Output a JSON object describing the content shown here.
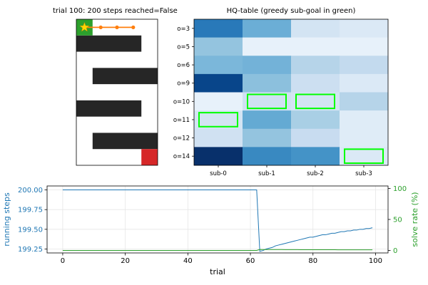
{
  "maze": {
    "title": "trial 100: 200 steps  reached=False",
    "rows": 9,
    "cols": 5,
    "walls": [
      [
        1,
        0,
        4
      ],
      [
        3,
        1,
        5
      ],
      [
        5,
        0,
        4
      ],
      [
        7,
        1,
        5
      ]
    ],
    "start": {
      "row": 0,
      "col": 0
    },
    "goal": {
      "row": 8,
      "col": 4
    },
    "path": [
      [
        0,
        1
      ],
      [
        0,
        2
      ],
      [
        0,
        3
      ]
    ],
    "colors": {
      "wall": "#262626",
      "start": "#2ca02c",
      "goal": "#d62728",
      "path": "#ff7f0e",
      "star": "#ffd700"
    }
  },
  "hq": {
    "title": "HQ-table (greedy sub-goal in green)",
    "row_labels": [
      "o=3",
      "o=5",
      "o=6",
      "o=9",
      "o=10",
      "o=11",
      "o=12",
      "o=14"
    ],
    "col_labels": [
      "sub-0",
      "sub-1",
      "sub-2",
      "sub-3"
    ],
    "values": [
      [
        0.72,
        0.5,
        0.18,
        0.14
      ],
      [
        0.4,
        0.08,
        0.08,
        0.08
      ],
      [
        0.46,
        0.48,
        0.3,
        0.26
      ],
      [
        0.92,
        0.42,
        0.22,
        0.14
      ],
      [
        0.08,
        0.2,
        0.18,
        0.3
      ],
      [
        0.18,
        0.52,
        0.34,
        0.12
      ],
      [
        0.2,
        0.4,
        0.24,
        0.12
      ],
      [
        1.0,
        0.66,
        0.62,
        0.14
      ]
    ],
    "greedy": [
      [
        4,
        1
      ],
      [
        4,
        2
      ],
      [
        5,
        0
      ],
      [
        7,
        3
      ]
    ],
    "highlight_color": "#00ff00"
  },
  "chart_data": {
    "type": "line",
    "x": [
      0,
      1,
      2,
      3,
      4,
      5,
      6,
      7,
      8,
      9,
      10,
      11,
      12,
      13,
      14,
      15,
      16,
      17,
      18,
      19,
      20,
      21,
      22,
      23,
      24,
      25,
      26,
      27,
      28,
      29,
      30,
      31,
      32,
      33,
      34,
      35,
      36,
      37,
      38,
      39,
      40,
      41,
      42,
      43,
      44,
      45,
      46,
      47,
      48,
      49,
      50,
      51,
      52,
      53,
      54,
      55,
      56,
      57,
      58,
      59,
      60,
      61,
      62,
      63,
      64,
      65,
      66,
      67,
      68,
      69,
      70,
      71,
      72,
      73,
      74,
      75,
      76,
      77,
      78,
      79,
      80,
      81,
      82,
      83,
      84,
      85,
      86,
      87,
      88,
      89,
      90,
      91,
      92,
      93,
      94,
      95,
      96,
      97,
      98,
      99
    ],
    "series": [
      {
        "axis": "left",
        "color": "#1f77b4",
        "values": [
          200,
          200,
          200,
          200,
          200,
          200,
          200,
          200,
          200,
          200,
          200,
          200,
          200,
          200,
          200,
          200,
          200,
          200,
          200,
          200,
          200,
          200,
          200,
          200,
          200,
          200,
          200,
          200,
          200,
          200,
          200,
          200,
          200,
          200,
          200,
          200,
          200,
          200,
          200,
          200,
          200,
          200,
          200,
          200,
          200,
          200,
          200,
          200,
          200,
          200,
          200,
          200,
          200,
          200,
          200,
          200,
          200,
          200,
          200,
          200,
          200,
          200,
          200,
          199.22,
          199.23,
          199.25,
          199.26,
          199.27,
          199.29,
          199.3,
          199.31,
          199.32,
          199.33,
          199.34,
          199.35,
          199.36,
          199.37,
          199.38,
          199.39,
          199.4,
          199.4,
          199.41,
          199.42,
          199.43,
          199.43,
          199.44,
          199.45,
          199.45,
          199.46,
          199.47,
          199.47,
          199.48,
          199.48,
          199.49,
          199.49,
          199.5,
          199.5,
          199.51,
          199.51,
          199.52
        ]
      },
      {
        "axis": "right",
        "color": "#2ca02c",
        "values": [
          0,
          0,
          0,
          0,
          0,
          0,
          0,
          0,
          0,
          0,
          0,
          0,
          0,
          0,
          0,
          0,
          0,
          0,
          0,
          0,
          0,
          0,
          0,
          0,
          0,
          0,
          0,
          0,
          0,
          0,
          0,
          0,
          0,
          0,
          0,
          0,
          0,
          0,
          0,
          0,
          0,
          0,
          0,
          0,
          0,
          0,
          0,
          0,
          0,
          0,
          0,
          0,
          0,
          0,
          0,
          0,
          0,
          0,
          0,
          0,
          0,
          0,
          0,
          1.6,
          1.5,
          1.5,
          1.5,
          1.4,
          1.4,
          1.4,
          1.4,
          1.3,
          1.3,
          1.3,
          1.3,
          1.3,
          1.2,
          1.2,
          1.2,
          1.2,
          1.2,
          1.1,
          1.1,
          1.1,
          1.1,
          1.1,
          1.1,
          1.1,
          1.0,
          1.0,
          1.0,
          1.0,
          1.0,
          1.0,
          1.0,
          1.0,
          1.0,
          1.0,
          1.0,
          1.0
        ]
      }
    ],
    "xlabel": "trial",
    "ylabel_left": "running steps",
    "ylabel_right": "solve rate (%)",
    "xlim": [
      -5,
      104
    ],
    "ylim_left": [
      199.2,
      200.05
    ],
    "ylim_right": [
      -4,
      104
    ],
    "xticks": [
      0,
      20,
      40,
      60,
      80,
      100
    ],
    "yticks_left": [
      "199.25",
      "199.50",
      "199.75",
      "200.00"
    ],
    "yticks_right": [
      "0",
      "50",
      "100"
    ],
    "grid": true
  }
}
